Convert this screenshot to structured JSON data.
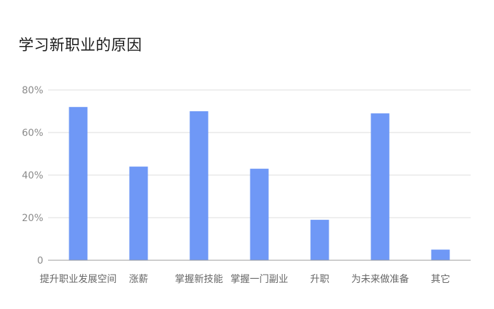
{
  "chart_data": {
    "type": "bar",
    "title": "学习新职业的原因",
    "categories": [
      "提升职业发展空间",
      "涨薪",
      "掌握新技能",
      "掌握一门副业",
      "升职",
      "为未来做准备",
      "其它"
    ],
    "values": [
      72,
      44,
      70,
      43,
      19,
      69,
      5
    ],
    "value_unit": "%",
    "ylim": [
      0,
      80
    ],
    "yticks": [
      0,
      20,
      40,
      60,
      80
    ],
    "ytick_labels": [
      "0",
      "20%",
      "40%",
      "60%",
      "80%"
    ],
    "xlabel": "",
    "ylabel": "",
    "grid": true,
    "legend": "none",
    "colors": {
      "bar": "#6f98f6",
      "grid": "#dcdcdc",
      "axis": "#9a9a9a"
    }
  }
}
